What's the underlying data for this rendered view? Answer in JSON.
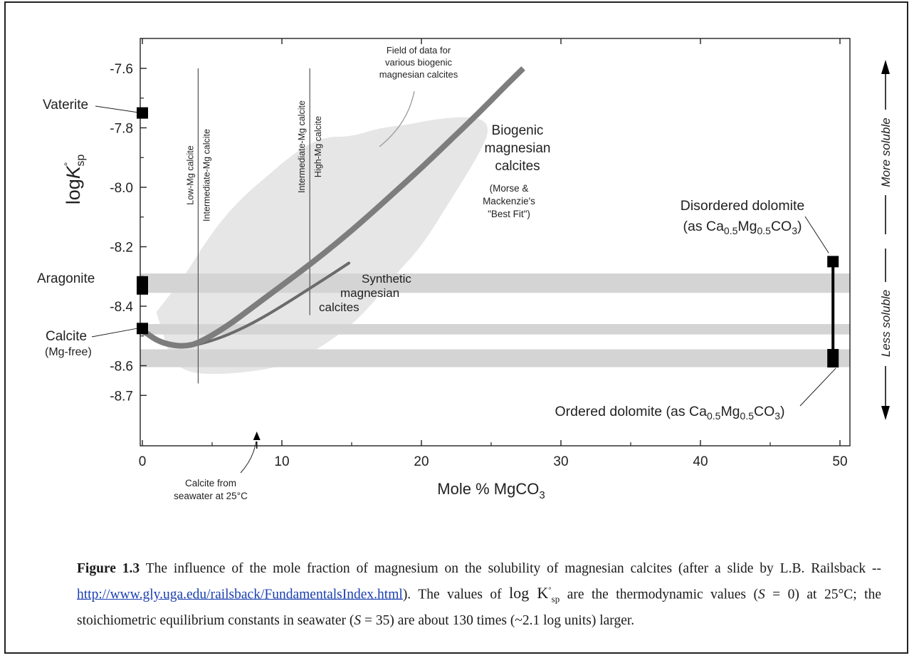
{
  "chart_data": {
    "type": "line",
    "xlabel": "Mole % MgCO",
    "xlabel_sub": "3",
    "ylabel": "logK°sp",
    "xlim": [
      0,
      51
    ],
    "ylim": [
      -8.72,
      -7.54
    ],
    "x_ticks": [
      "0",
      "10",
      "20",
      "30",
      "40",
      "50"
    ],
    "y_ticks": [
      "-7.6",
      "-7.8",
      "-8.0",
      "-8.2",
      "-8.4",
      "-8.6",
      "-8.7"
    ],
    "series": [
      {
        "name": "Biogenic magnesian calcites",
        "x": [
          0,
          1,
          2,
          3,
          4,
          6,
          8,
          10,
          12,
          14,
          16,
          18,
          20,
          22,
          24,
          26,
          27.3
        ],
        "y": [
          -8.48,
          -8.515,
          -8.53,
          -8.535,
          -8.525,
          -8.47,
          -8.4,
          -8.33,
          -8.26,
          -8.185,
          -8.105,
          -8.02,
          -7.935,
          -7.845,
          -7.755,
          -7.66,
          -7.6
        ]
      },
      {
        "name": "Synthetic magnesian calcites",
        "x": [
          0,
          1,
          2,
          3,
          4,
          6,
          8,
          10,
          12,
          13.5,
          14.8
        ],
        "y": [
          -8.49,
          -8.51,
          -8.53,
          -8.535,
          -8.53,
          -8.5,
          -8.455,
          -8.4,
          -8.34,
          -8.295,
          -8.255
        ]
      }
    ],
    "points": [
      {
        "name": "Vaterite",
        "x": 0,
        "y": -7.75
      },
      {
        "name": "Aragonite",
        "x": 0,
        "y": -8.33
      },
      {
        "name": "Calcite",
        "x": 0,
        "y": -8.475
      },
      {
        "name": "Disordered dolomite",
        "x": 49.5,
        "y": -8.25
      },
      {
        "name": "Ordered dolomite",
        "x": 49.5,
        "y": -8.575
      }
    ],
    "bands": [
      {
        "name": "aragonite-band",
        "y": [
          -8.355,
          -8.29
        ]
      },
      {
        "name": "calcite-band",
        "y": [
          -8.495,
          -8.46
        ]
      },
      {
        "name": "ordered-dolomite-band",
        "y": [
          -8.605,
          -8.545
        ]
      }
    ],
    "vlines": [
      {
        "x": 4,
        "y": [
          -7.6,
          -8.66
        ],
        "labels": [
          "Low-Mg calcite",
          "Intermediate-Mg calcite"
        ]
      },
      {
        "x": 12,
        "y": [
          -7.6,
          -8.43
        ],
        "labels": [
          "Intermediate-Mg calcite",
          "High-Mg calcite"
        ]
      }
    ],
    "field_region": {
      "name": "Field of data for various biogenic magnesian calcites",
      "outline": [
        [
          1,
          -8.42
        ],
        [
          3,
          -8.3
        ],
        [
          5,
          -8.15
        ],
        [
          7,
          -8.04
        ],
        [
          9,
          -7.96
        ],
        [
          11,
          -7.88
        ],
        [
          13,
          -7.83
        ],
        [
          15,
          -7.83
        ],
        [
          17,
          -7.8
        ],
        [
          19,
          -7.79
        ],
        [
          21,
          -7.77
        ],
        [
          24,
          -7.76
        ],
        [
          25,
          -7.8
        ],
        [
          24,
          -7.9
        ],
        [
          22,
          -8.05
        ],
        [
          20,
          -8.2
        ],
        [
          18,
          -8.3
        ],
        [
          16,
          -8.42
        ],
        [
          14,
          -8.5
        ],
        [
          12,
          -8.56
        ],
        [
          10,
          -8.6
        ],
        [
          8,
          -8.62
        ],
        [
          5,
          -8.63
        ],
        [
          3,
          -8.62
        ],
        [
          1.2,
          -8.55
        ]
      ]
    },
    "annotations": {
      "vaterite": "Vaterite",
      "aragonite": "Aragonite",
      "calcite": "Calcite",
      "calcite_sub": "(Mg-free)",
      "field_lines": [
        "Field of data for",
        "various biogenic",
        "magnesian calcites"
      ],
      "biogenic_lines": [
        "Biogenic",
        "magnesian",
        "calcites"
      ],
      "biogenic_note": [
        "(Morse &",
        "Mackenzie's",
        "\"Best Fit\")"
      ],
      "synthetic_lines": [
        "Synthetic",
        "magnesian",
        "calcites"
      ],
      "disordered_line1": "Disordered dolomite",
      "disordered_line2": [
        "(as Ca",
        "0.5",
        "Mg",
        "0.5",
        "CO",
        "3",
        ")"
      ],
      "ordered_line": [
        "Ordered dolomite (as Ca",
        "0.5",
        "Mg",
        "0.5",
        "CO",
        "3",
        ")"
      ],
      "seawater_marker": [
        "Calcite from",
        "seawater at 25°C"
      ],
      "seawater_x": 8.2,
      "more_soluble": "More soluble",
      "less_soluble": "Less soluble"
    },
    "colors": {
      "biogenic_curve": "#7d7d7d",
      "synthetic_curve": "#6b6b6b",
      "field_fill": "#e6e6e6",
      "band_fill": "#d4d4d4",
      "marker": "#000000"
    }
  },
  "caption": {
    "label": "Figure 1.3",
    "text1": " The influence of the mole fraction of magnesium on the solubility of magnesian calcites (after a slide by L.B. Railsback -- ",
    "link": "http://www.gly.uga.edu/railsback/FundamentalsIndex.html",
    "text2": "). The values of ",
    "logk": "log K",
    "logk_sub": "sp",
    "text3": " are the thermodynamic values (",
    "s": "S",
    "text4": " = 0) at 25°C; the stoichiometric equilibrium constants in seawater (",
    "text5": " = 35) are about 130 times (~2.1 log units) larger."
  }
}
